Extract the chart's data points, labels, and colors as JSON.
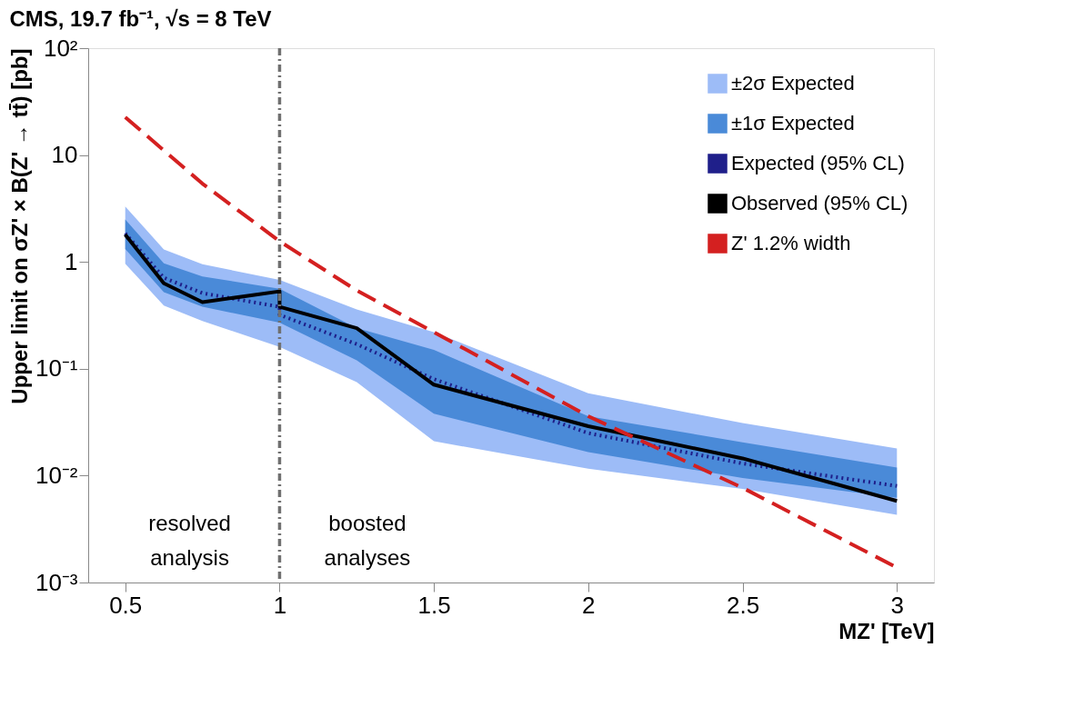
{
  "chart_data": {
    "type": "line",
    "title": "CMS, 19.7 fb⁻¹, √s = 8 TeV",
    "xlabel": "MZ' [TeV]",
    "ylabel": "Upper limit on σZ' × B(Z' → tt̄) [pb]",
    "log": "y",
    "grid": false,
    "legend": "top right",
    "xlim": [
      0.38,
      3.12
    ],
    "xticks": [
      0.5,
      1,
      1.5,
      2,
      2.5,
      3
    ],
    "ylim": [
      0.001,
      100
    ],
    "yticks": [
      {
        "value": 0.001,
        "label": "10⁻³"
      },
      {
        "value": 0.01,
        "label": "10⁻²"
      },
      {
        "value": 0.1,
        "label": "10⁻¹"
      },
      1,
      10,
      {
        "value": 100,
        "label": "10²"
      }
    ],
    "series": [
      {
        "name": "±2σ Expected",
        "type": "area",
        "color": "#9dbcf7",
        "x": [
          0.5,
          0.625,
          0.75,
          1.0,
          1.25,
          1.5,
          2.0,
          2.5,
          3.0
        ],
        "values": [
          null,
          null,
          null,
          null,
          null,
          null,
          null,
          null,
          null
        ],
        "lower": [
          0.96,
          0.39,
          0.28,
          0.16,
          0.075,
          0.021,
          0.0116,
          0.0075,
          0.0043
        ],
        "upper": [
          3.3,
          1.31,
          0.95,
          0.68,
          0.36,
          0.22,
          0.059,
          0.031,
          0.018
        ]
      },
      {
        "name": "±1σ Expected",
        "type": "area",
        "color": "#4a8ad8",
        "x": [
          0.5,
          0.625,
          0.75,
          1.0,
          1.25,
          1.5,
          2.0,
          2.5,
          3.0
        ],
        "values": [
          null,
          null,
          null,
          null,
          null,
          null,
          null,
          null,
          null
        ],
        "lower": [
          1.32,
          0.52,
          0.38,
          0.27,
          0.12,
          0.038,
          0.0166,
          0.0095,
          0.0062
        ],
        "upper": [
          2.5,
          0.97,
          0.73,
          0.56,
          0.24,
          0.15,
          0.036,
          0.0205,
          0.0119
        ]
      },
      {
        "name": "Expected (95% CL)",
        "color": "#1f1f8a",
        "line_style": "dotted",
        "x": [
          0.5,
          0.625,
          0.75,
          1.0,
          1.0,
          1.25,
          1.5,
          2.0,
          2.5,
          3.0
        ],
        "values": [
          1.85,
          0.71,
          0.51,
          0.38,
          0.32,
          0.17,
          0.08,
          0.025,
          0.013,
          0.008
        ]
      },
      {
        "name": "Observed (95% CL)",
        "color": "#000000",
        "line_style": "solid",
        "x": [
          0.5,
          0.625,
          0.75,
          1.0,
          1.0,
          1.25,
          1.5,
          2.0,
          2.5,
          3.0
        ],
        "values": [
          1.8,
          0.63,
          0.42,
          0.53,
          0.38,
          0.24,
          0.071,
          0.029,
          0.0145,
          0.0058
        ]
      },
      {
        "name": "Z' 1.2% width",
        "color": "#d42020",
        "line_style": "dashed",
        "x": [
          0.5,
          0.75,
          1.0,
          1.25,
          1.5,
          2.0,
          2.5,
          3.0
        ],
        "values": [
          22.6,
          5.4,
          1.56,
          0.54,
          0.22,
          0.036,
          0.0077,
          0.00138
        ]
      }
    ],
    "ref_lines": [
      {
        "axis": "x",
        "value": 1,
        "color": "#707070",
        "line_style": "dashdot"
      }
    ],
    "annotations": [
      "resolved\nanalysis",
      "boosted\nanalyses"
    ]
  }
}
